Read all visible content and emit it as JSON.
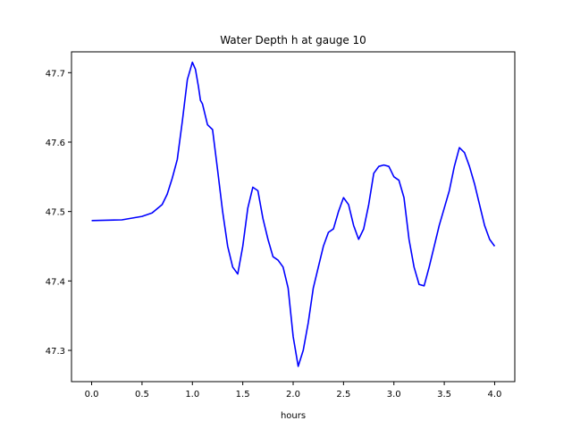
{
  "chart_data": {
    "type": "line",
    "title": "Water Depth h at gauge 10",
    "xlabel": "hours",
    "ylabel": "",
    "xlim": [
      -0.2,
      4.2
    ],
    "ylim": [
      47.255,
      47.73
    ],
    "xticks": [
      0.0,
      0.5,
      1.0,
      1.5,
      2.0,
      2.5,
      3.0,
      3.5,
      4.0
    ],
    "xtick_labels": [
      "0.0",
      "0.5",
      "1.0",
      "1.5",
      "2.0",
      "2.5",
      "3.0",
      "3.5",
      "4.0"
    ],
    "yticks": [
      47.3,
      47.4,
      47.5,
      47.6,
      47.7
    ],
    "ytick_labels": [
      "47.3",
      "47.4",
      "47.5",
      "47.6",
      "47.7"
    ],
    "grid": false,
    "legend": "none",
    "series": [
      {
        "color": "#0000ff",
        "x": [
          0.0,
          0.3,
          0.5,
          0.6,
          0.7,
          0.75,
          0.8,
          0.85,
          0.9,
          0.95,
          1.0,
          1.03,
          1.06,
          1.08,
          1.1,
          1.15,
          1.2,
          1.25,
          1.3,
          1.35,
          1.4,
          1.45,
          1.5,
          1.55,
          1.6,
          1.65,
          1.7,
          1.75,
          1.8,
          1.85,
          1.9,
          1.95,
          2.0,
          2.05,
          2.1,
          2.15,
          2.2,
          2.25,
          2.3,
          2.35,
          2.4,
          2.45,
          2.5,
          2.55,
          2.6,
          2.65,
          2.7,
          2.75,
          2.8,
          2.85,
          2.9,
          2.95,
          3.0,
          3.05,
          3.1,
          3.15,
          3.2,
          3.25,
          3.3,
          3.35,
          3.4,
          3.45,
          3.5,
          3.55,
          3.6,
          3.65,
          3.7,
          3.75,
          3.8,
          3.85,
          3.9,
          3.95,
          4.0
        ],
        "y": [
          47.487,
          47.488,
          47.493,
          47.498,
          47.51,
          47.525,
          47.548,
          47.575,
          47.63,
          47.69,
          47.715,
          47.705,
          47.68,
          47.66,
          47.655,
          47.625,
          47.618,
          47.56,
          47.5,
          47.45,
          47.42,
          47.41,
          47.45,
          47.505,
          47.535,
          47.53,
          47.49,
          47.46,
          47.435,
          47.43,
          47.42,
          47.39,
          47.32,
          47.277,
          47.3,
          47.34,
          47.39,
          47.42,
          47.45,
          47.47,
          47.475,
          47.5,
          47.52,
          47.51,
          47.48,
          47.46,
          47.475,
          47.51,
          47.555,
          47.565,
          47.567,
          47.565,
          47.55,
          47.545,
          47.52,
          47.46,
          47.42,
          47.395,
          47.393,
          47.42,
          47.45,
          47.48,
          47.505,
          47.53,
          47.565,
          47.592,
          47.585,
          47.565,
          47.54,
          47.51,
          47.48,
          47.46,
          47.45
        ]
      }
    ]
  }
}
